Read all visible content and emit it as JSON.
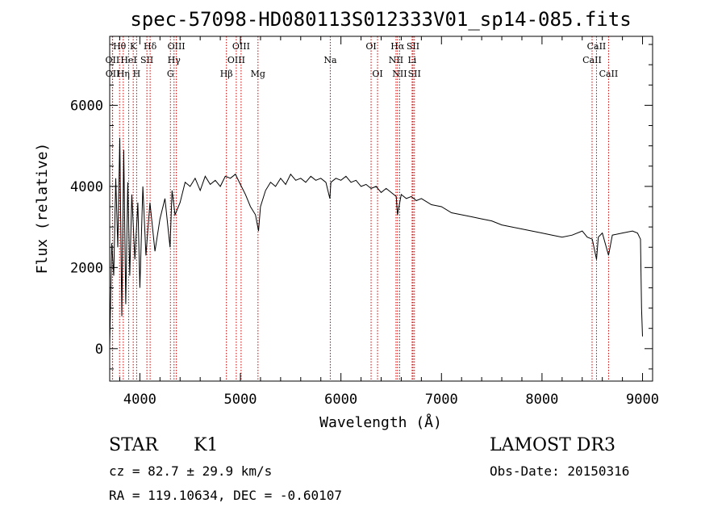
{
  "chart_data": {
    "type": "line",
    "title": "spec-57098-HD080113S012333V01_sp14-085.fits",
    "xlabel": "Wavelength (Å)",
    "ylabel": "Flux (relative)",
    "xlim": [
      3700,
      9100
    ],
    "ylim": [
      -800,
      7700
    ],
    "xticks": [
      4000,
      5000,
      6000,
      7000,
      8000,
      9000
    ],
    "yticks": [
      0,
      2000,
      4000,
      6000
    ],
    "series": [
      {
        "name": "flux",
        "x": [
          3700,
          3720,
          3740,
          3760,
          3780,
          3800,
          3820,
          3840,
          3860,
          3880,
          3900,
          3920,
          3950,
          3980,
          4000,
          4030,
          4060,
          4100,
          4150,
          4200,
          4250,
          4300,
          4320,
          4350,
          4400,
          4450,
          4500,
          4550,
          4600,
          4650,
          4700,
          4750,
          4800,
          4850,
          4900,
          4950,
          5000,
          5050,
          5100,
          5150,
          5180,
          5200,
          5250,
          5300,
          5350,
          5400,
          5450,
          5500,
          5550,
          5600,
          5650,
          5700,
          5750,
          5800,
          5850,
          5890,
          5900,
          5950,
          6000,
          6050,
          6100,
          6150,
          6200,
          6250,
          6300,
          6350,
          6400,
          6450,
          6500,
          6550,
          6563,
          6600,
          6650,
          6700,
          6750,
          6800,
          6900,
          7000,
          7100,
          7200,
          7300,
          7400,
          7500,
          7600,
          7700,
          7800,
          7900,
          8000,
          8100,
          8200,
          8300,
          8400,
          8450,
          8500,
          8542,
          8560,
          8600,
          8662,
          8700,
          8800,
          8900,
          8950,
          8980,
          8990,
          9000
        ],
        "y": [
          50,
          2600,
          1800,
          4200,
          2500,
          5200,
          800,
          4900,
          1100,
          4100,
          1800,
          3800,
          2200,
          3600,
          1500,
          4000,
          2300,
          3600,
          2400,
          3200,
          3700,
          2500,
          3900,
          3300,
          3600,
          4100,
          4000,
          4200,
          3900,
          4250,
          4050,
          4150,
          4000,
          4250,
          4200,
          4300,
          4050,
          3800,
          3500,
          3300,
          2900,
          3500,
          3900,
          4100,
          4000,
          4200,
          4050,
          4300,
          4150,
          4200,
          4100,
          4250,
          4150,
          4200,
          4100,
          3700,
          4100,
          4200,
          4150,
          4250,
          4100,
          4150,
          4000,
          4050,
          3950,
          4000,
          3850,
          3950,
          3850,
          3750,
          3300,
          3800,
          3700,
          3750,
          3650,
          3700,
          3550,
          3500,
          3350,
          3300,
          3250,
          3200,
          3150,
          3050,
          3000,
          2950,
          2900,
          2850,
          2800,
          2750,
          2800,
          2900,
          2750,
          2700,
          2200,
          2750,
          2850,
          2300,
          2800,
          2850,
          2900,
          2850,
          2700,
          1000,
          300
        ]
      }
    ],
    "lines": [
      {
        "label": "Hθ",
        "wl": 3798,
        "row": 1
      },
      {
        "label": "OII",
        "wl": 3727,
        "row": 2
      },
      {
        "label": "OII",
        "wl": 3729,
        "row": 3
      },
      {
        "label": "Hη",
        "wl": 3835,
        "row": 3
      },
      {
        "label": "HeI",
        "wl": 3889,
        "row": 2
      },
      {
        "label": "K",
        "wl": 3934,
        "row": 1
      },
      {
        "label": "H",
        "wl": 3968,
        "row": 3
      },
      {
        "label": "SII",
        "wl": 4070,
        "row": 2
      },
      {
        "label": "Hδ",
        "wl": 4102,
        "row": 1
      },
      {
        "label": "G",
        "wl": 4304,
        "row": 3
      },
      {
        "label": "Hγ",
        "wl": 4340,
        "row": 2
      },
      {
        "label": "OIII",
        "wl": 4363,
        "row": 1
      },
      {
        "label": "Hβ",
        "wl": 4861,
        "row": 3
      },
      {
        "label": "OIII",
        "wl": 4959,
        "row": 2
      },
      {
        "label": "OIII",
        "wl": 5007,
        "row": 1
      },
      {
        "label": "Mg",
        "wl": 5175,
        "row": 3
      },
      {
        "label": "Na",
        "wl": 5894,
        "row": 2
      },
      {
        "label": "OI",
        "wl": 6300,
        "row": 1
      },
      {
        "label": "OI",
        "wl": 6364,
        "row": 3
      },
      {
        "label": "NII",
        "wl": 6548,
        "row": 2
      },
      {
        "label": "Hα",
        "wl": 6563,
        "row": 1
      },
      {
        "label": "NII",
        "wl": 6584,
        "row": 3
      },
      {
        "label": "Li",
        "wl": 6708,
        "row": 2
      },
      {
        "label": "SII",
        "wl": 6717,
        "row": 1
      },
      {
        "label": "SII",
        "wl": 6731,
        "row": 3
      },
      {
        "label": "CaII",
        "wl": 8498,
        "row": 2
      },
      {
        "label": "CaII",
        "wl": 8542,
        "row": 1
      },
      {
        "label": "CaII",
        "wl": 8662,
        "row": 3
      }
    ]
  },
  "info": {
    "class": "STAR",
    "subclass": "K1",
    "survey": "LAMOST DR3",
    "cz": "cz = 82.7 ± 29.9 km/s",
    "obs_date": "Obs-Date: 20150316",
    "radec": "RA = 119.10634, DEC =  -0.60107"
  }
}
